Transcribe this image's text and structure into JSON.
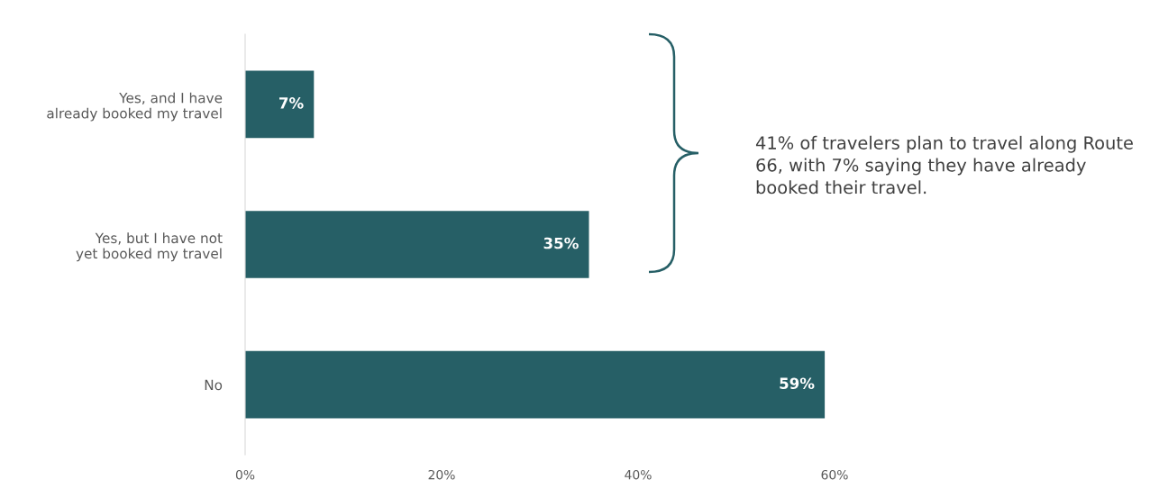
{
  "chart_data": {
    "type": "bar",
    "orientation": "horizontal",
    "categories": [
      "Yes, and I have\nalready booked my travel",
      "Yes, but I have not\nyet booked my travel",
      "No"
    ],
    "values": [
      7,
      35,
      59
    ],
    "value_labels": [
      "7%",
      "35%",
      "59%"
    ],
    "color": "#265f66",
    "xlim": [
      0,
      60
    ],
    "xticks": [
      {
        "value": 0,
        "label": "0%"
      },
      {
        "value": 20,
        "label": "20%"
      },
      {
        "value": 40,
        "label": "40%"
      },
      {
        "value": 60,
        "label": "60%"
      }
    ],
    "grid": false,
    "legend": false,
    "annotations": [
      "41% of travelers plan to travel along Route 66, with 7% saying they have already booked their travel."
    ]
  }
}
